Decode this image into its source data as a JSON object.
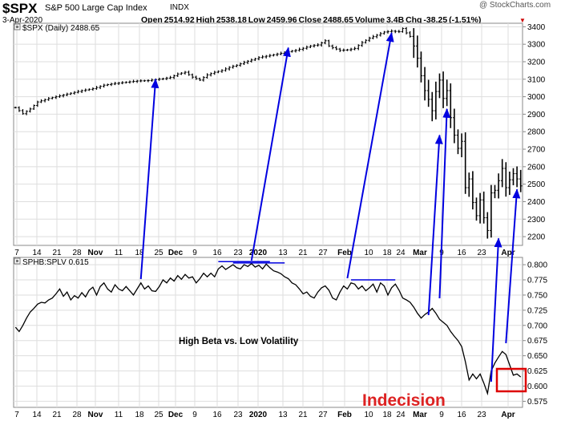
{
  "header": {
    "ticker": "$SPX",
    "name": "S&P 500 Large Cap Index",
    "exchange": "INDX",
    "date": "3-Apr-2020",
    "quote": "Open 2514.92  High 2538.18  Low 2459.96  Close 2488.65  Volume 3.4B  Chg -38.25 (-1.51%)",
    "watermark": "@ StockCharts.com",
    "down_color": "#cc0000"
  },
  "chart_data": [
    {
      "type": "ohlc",
      "legend": "$SPX (Daily) 2488.65",
      "y_ticks": [
        2200,
        2300,
        2400,
        2500,
        2600,
        2700,
        2800,
        2900,
        3000,
        3100,
        3200,
        3300,
        3400
      ],
      "ylim": [
        2150,
        3420
      ],
      "x_ticks": [
        "7",
        "14",
        "21",
        "28",
        "Nov",
        "11",
        "18",
        "25",
        "Dec",
        "9",
        "16",
        "23",
        "2020",
        "13",
        "21",
        "27",
        "Feb",
        "10",
        "18",
        "24",
        "Mar",
        "9",
        "16",
        "23",
        "Apr"
      ],
      "bold_ticks": [
        "Nov",
        "Dec",
        "2020",
        "Feb",
        "Mar",
        "Apr"
      ],
      "grid": true,
      "close_points": [
        [
          0,
          2938
        ],
        [
          2,
          2903
        ],
        [
          4,
          2930
        ],
        [
          6,
          2970
        ],
        [
          9,
          2990
        ],
        [
          12,
          3005
        ],
        [
          15,
          3020
        ],
        [
          18,
          3035
        ],
        [
          21,
          3046
        ],
        [
          24,
          3066
        ],
        [
          27,
          3076
        ],
        [
          30,
          3083
        ],
        [
          33,
          3090
        ],
        [
          36,
          3092
        ],
        [
          38,
          3098
        ],
        [
          40,
          3103
        ],
        [
          42,
          3110
        ],
        [
          44,
          3130
        ],
        [
          46,
          3140
        ],
        [
          48,
          3112
        ],
        [
          50,
          3095
        ],
        [
          52,
          3125
        ],
        [
          54,
          3140
        ],
        [
          56,
          3150
        ],
        [
          58,
          3168
        ],
        [
          60,
          3180
        ],
        [
          62,
          3196
        ],
        [
          64,
          3210
        ],
        [
          66,
          3224
        ],
        [
          68,
          3232
        ],
        [
          70,
          3240
        ],
        [
          72,
          3248
        ],
        [
          74,
          3258
        ],
        [
          76,
          3265
        ],
        [
          78,
          3277
        ],
        [
          80,
          3290
        ],
        [
          82,
          3296
        ],
        [
          84,
          3320
        ],
        [
          85,
          3290
        ],
        [
          86,
          3280
        ],
        [
          88,
          3265
        ],
        [
          90,
          3268
        ],
        [
          92,
          3276
        ],
        [
          94,
          3310
        ],
        [
          96,
          3335
        ],
        [
          98,
          3352
        ],
        [
          100,
          3370
        ],
        [
          102,
          3375
        ],
        [
          104,
          3372
        ],
        [
          105,
          3390
        ],
        [
          106,
          3365
        ],
        [
          107,
          3345
        ],
        [
          108,
          3290
        ],
        [
          109,
          3220
        ],
        [
          110,
          3120
        ],
        [
          111,
          3035
        ],
        [
          112,
          2985
        ],
        [
          113,
          2920
        ],
        [
          114,
          3030
        ],
        [
          115,
          3095
        ],
        [
          116,
          2990
        ],
        [
          117,
          3035
        ],
        [
          118,
          2880
        ],
        [
          119,
          2780
        ],
        [
          120,
          2705
        ],
        [
          121,
          2745
        ],
        [
          122,
          2480
        ],
        [
          123,
          2530
        ],
        [
          124,
          2395
        ],
        [
          125,
          2320
        ],
        [
          126,
          2410
        ],
        [
          127,
          2308
        ],
        [
          128,
          2235
        ],
        [
          129,
          2450
        ],
        [
          130,
          2465
        ],
        [
          131,
          2520
        ],
        [
          132,
          2590
        ],
        [
          133,
          2480
        ],
        [
          134,
          2525
        ],
        [
          135,
          2560
        ],
        [
          136,
          2530
        ],
        [
          137,
          2490
        ]
      ],
      "callout_arrows": [
        {
          "from": [
            34,
            2000
          ],
          "to": [
            38,
            3100
          ]
        },
        {
          "from": [
            64,
            2000
          ],
          "to": [
            74,
            3280
          ]
        },
        {
          "from": [
            90,
            2000
          ],
          "to": [
            102,
            3365
          ]
        },
        {
          "from": [
            112,
            2000
          ],
          "to": [
            115,
            2780
          ]
        },
        {
          "from": [
            115,
            2000
          ],
          "to": [
            117,
            2930
          ]
        },
        {
          "from": [
            129,
            2000
          ],
          "to": [
            131,
            2190
          ]
        },
        {
          "from": [
            133,
            2000
          ],
          "to": [
            136,
            2470
          ]
        }
      ],
      "arrow_color": "#0000e0"
    },
    {
      "type": "line",
      "legend": "SPHB:SPLV 0.615",
      "y_ticks": [
        0.575,
        0.6,
        0.625,
        0.65,
        0.675,
        0.7,
        0.725,
        0.75,
        0.775,
        0.8
      ],
      "ylim": [
        0.565,
        0.812
      ],
      "x_ticks": [
        "7",
        "14",
        "21",
        "28",
        "Nov",
        "11",
        "18",
        "25",
        "Dec",
        "9",
        "16",
        "23",
        "2020",
        "13",
        "21",
        "27",
        "Feb",
        "10",
        "18",
        "24",
        "Mar",
        "9",
        "16",
        "23",
        "Apr"
      ],
      "bold_ticks": [
        "Nov",
        "Dec",
        "2020",
        "Feb",
        "Mar",
        "Apr"
      ],
      "grid": true,
      "points": [
        [
          0,
          0.697
        ],
        [
          1,
          0.69
        ],
        [
          2,
          0.7
        ],
        [
          3,
          0.712
        ],
        [
          4,
          0.722
        ],
        [
          5,
          0.728
        ],
        [
          6,
          0.735
        ],
        [
          7,
          0.738
        ],
        [
          8,
          0.737
        ],
        [
          9,
          0.742
        ],
        [
          10,
          0.745
        ],
        [
          11,
          0.752
        ],
        [
          12,
          0.76
        ],
        [
          13,
          0.748
        ],
        [
          14,
          0.755
        ],
        [
          15,
          0.742
        ],
        [
          16,
          0.749
        ],
        [
          17,
          0.745
        ],
        [
          18,
          0.754
        ],
        [
          19,
          0.747
        ],
        [
          20,
          0.758
        ],
        [
          21,
          0.763
        ],
        [
          22,
          0.75
        ],
        [
          23,
          0.764
        ],
        [
          24,
          0.77
        ],
        [
          25,
          0.76
        ],
        [
          26,
          0.755
        ],
        [
          27,
          0.767
        ],
        [
          28,
          0.76
        ],
        [
          29,
          0.757
        ],
        [
          30,
          0.764
        ],
        [
          31,
          0.757
        ],
        [
          32,
          0.75
        ],
        [
          33,
          0.76
        ],
        [
          34,
          0.77
        ],
        [
          35,
          0.76
        ],
        [
          36,
          0.765
        ],
        [
          37,
          0.757
        ],
        [
          38,
          0.756
        ],
        [
          39,
          0.764
        ],
        [
          40,
          0.775
        ],
        [
          41,
          0.77
        ],
        [
          42,
          0.778
        ],
        [
          43,
          0.773
        ],
        [
          44,
          0.782
        ],
        [
          45,
          0.776
        ],
        [
          46,
          0.784
        ],
        [
          47,
          0.778
        ],
        [
          48,
          0.78
        ],
        [
          49,
          0.77
        ],
        [
          50,
          0.777
        ],
        [
          51,
          0.786
        ],
        [
          52,
          0.78
        ],
        [
          53,
          0.786
        ],
        [
          54,
          0.78
        ],
        [
          55,
          0.793
        ],
        [
          56,
          0.798
        ],
        [
          57,
          0.792
        ],
        [
          58,
          0.796
        ],
        [
          59,
          0.8
        ],
        [
          60,
          0.795
        ],
        [
          61,
          0.793
        ],
        [
          62,
          0.8
        ],
        [
          63,
          0.797
        ],
        [
          64,
          0.802
        ],
        [
          65,
          0.796
        ],
        [
          66,
          0.799
        ],
        [
          67,
          0.793
        ],
        [
          68,
          0.801
        ],
        [
          69,
          0.795
        ],
        [
          70,
          0.79
        ],
        [
          71,
          0.788
        ],
        [
          72,
          0.785
        ],
        [
          73,
          0.78
        ],
        [
          74,
          0.777
        ],
        [
          75,
          0.77
        ],
        [
          76,
          0.767
        ],
        [
          77,
          0.76
        ],
        [
          78,
          0.752
        ],
        [
          79,
          0.755
        ],
        [
          80,
          0.748
        ],
        [
          81,
          0.745
        ],
        [
          82,
          0.755
        ],
        [
          83,
          0.762
        ],
        [
          84,
          0.765
        ],
        [
          85,
          0.758
        ],
        [
          86,
          0.745
        ],
        [
          87,
          0.742
        ],
        [
          88,
          0.755
        ],
        [
          89,
          0.765
        ],
        [
          90,
          0.76
        ],
        [
          91,
          0.77
        ],
        [
          92,
          0.768
        ],
        [
          93,
          0.76
        ],
        [
          94,
          0.765
        ],
        [
          95,
          0.757
        ],
        [
          96,
          0.762
        ],
        [
          97,
          0.768
        ],
        [
          98,
          0.755
        ],
        [
          99,
          0.77
        ],
        [
          100,
          0.765
        ],
        [
          101,
          0.75
        ],
        [
          102,
          0.762
        ],
        [
          103,
          0.768
        ],
        [
          104,
          0.758
        ],
        [
          105,
          0.745
        ],
        [
          106,
          0.742
        ],
        [
          107,
          0.738
        ],
        [
          108,
          0.73
        ],
        [
          109,
          0.72
        ],
        [
          110,
          0.712
        ],
        [
          111,
          0.718
        ],
        [
          112,
          0.722
        ],
        [
          113,
          0.728
        ],
        [
          114,
          0.72
        ],
        [
          115,
          0.71
        ],
        [
          116,
          0.705
        ],
        [
          117,
          0.7
        ],
        [
          118,
          0.69
        ],
        [
          119,
          0.682
        ],
        [
          120,
          0.675
        ],
        [
          121,
          0.665
        ],
        [
          122,
          0.64
        ],
        [
          123,
          0.61
        ],
        [
          124,
          0.62
        ],
        [
          125,
          0.612
        ],
        [
          126,
          0.62
        ],
        [
          127,
          0.605
        ],
        [
          128,
          0.588
        ],
        [
          129,
          0.625
        ],
        [
          130,
          0.638
        ],
        [
          131,
          0.648
        ],
        [
          132,
          0.657
        ],
        [
          133,
          0.652
        ],
        [
          134,
          0.635
        ],
        [
          135,
          0.618
        ],
        [
          136,
          0.62
        ],
        [
          137,
          0.615
        ]
      ],
      "annotation": "High Beta vs. Low Volatility",
      "callout_label": "Indecision",
      "label_color": "#dd2222",
      "box_color": "#dd0000"
    }
  ]
}
